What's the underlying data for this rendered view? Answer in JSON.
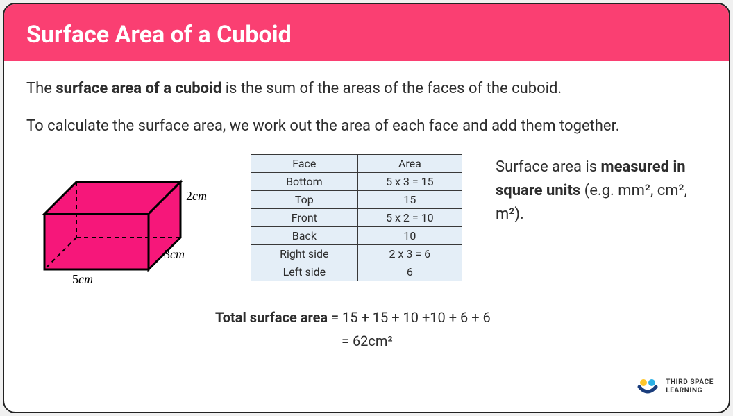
{
  "header": {
    "title": "Surface Area of a Cuboid",
    "background_color": "#fa3f72",
    "text_color": "#ffffff"
  },
  "intro": {
    "line1_pre": "The ",
    "line1_bold": "surface area of a cuboid",
    "line1_post": " is the sum of the areas of the faces of the cuboid.",
    "line2": "To calculate the surface area, we work out the area of each face and add them together."
  },
  "cuboid": {
    "fill_color": "#f6177a",
    "edge_color": "#000000",
    "dashed_color": "#000000",
    "label_w": "5",
    "label_d": "3",
    "label_h": "2",
    "unit": "cm"
  },
  "table": {
    "header_face": "Face",
    "header_area": "Area",
    "row_bg": "#e4eef7",
    "border_color": "#383838",
    "rows": [
      {
        "face": "Bottom",
        "area": "5 x 3 = 15"
      },
      {
        "face": "Top",
        "area": "15"
      },
      {
        "face": "Front",
        "area": "5 x 2 = 10"
      },
      {
        "face": "Back",
        "area": "10"
      },
      {
        "face": "Right side",
        "area": "2 x 3 = 6"
      },
      {
        "face": "Left side",
        "area": "6"
      }
    ]
  },
  "note": {
    "pre": "Surface area is ",
    "bold": "measured in square units",
    "post": " (e.g. mm², cm², m²)."
  },
  "totals": {
    "label": "Total surface area",
    "eq1": " = 15 + 15 + 10 +10 + 6 + 6",
    "eq2": "= 62cm²"
  },
  "logo": {
    "line1": "THIRD SPACE",
    "line2": "LEARNING",
    "dot_colors": [
      "#ffc629",
      "#2bb0e5",
      "#1a3d7c"
    ]
  }
}
